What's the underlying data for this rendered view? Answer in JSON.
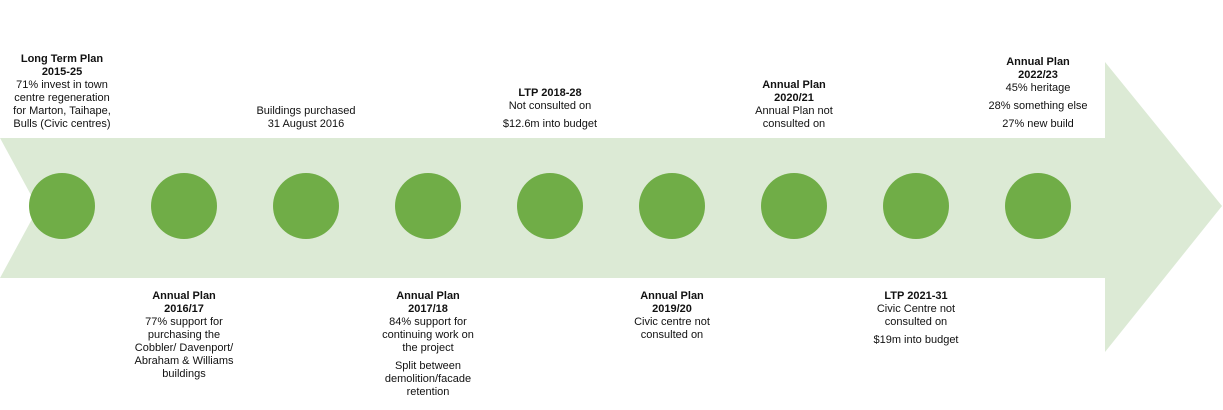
{
  "events": [
    {
      "title": "Long Term Plan 2015-25",
      "text": [
        "71% invest in town centre regeneration for Marton, Taihape, Bulls (Civic centres)"
      ]
    },
    {
      "title": "Annual Plan 2016/17",
      "text": [
        "77% support for purchasing the Cobbler/ Davenport/ Abraham & Williams buildings"
      ]
    },
    {
      "text": [
        "Buildings purchased 31 August 2016"
      ]
    },
    {
      "title": "Annual Plan 2017/18",
      "text": [
        "84% support for continuing work on the project",
        "Split between demolition/facade retention"
      ]
    },
    {
      "title": "LTP 2018-28",
      "text": [
        "Not consulted on",
        "$12.6m into budget"
      ]
    },
    {
      "title": "Annual Plan 2019/20",
      "text": [
        "Civic centre not consulted on"
      ]
    },
    {
      "title": "Annual Plan 2020/21",
      "text": [
        "Annual Plan not consulted on"
      ]
    },
    {
      "title": "LTP 2021-31",
      "text": [
        "Civic Centre not consulted on",
        "$19m into budget"
      ]
    },
    {
      "title": "Annual Plan 2022/23",
      "text": [
        "45% heritage",
        "28% something else",
        "27% new build"
      ]
    }
  ]
}
